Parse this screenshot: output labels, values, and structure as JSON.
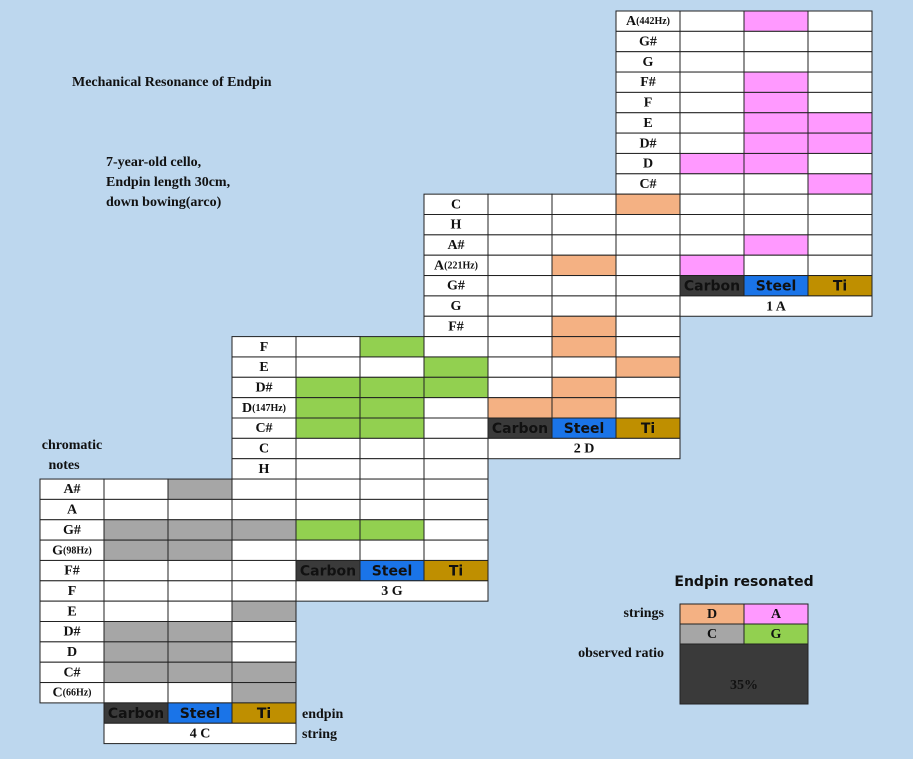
{
  "title": "Mechanical Resonance of Endpin",
  "subtitle": [
    "7-year-old cello,",
    "Endpin length 30cm,",
    "down bowing(arco)"
  ],
  "notes_label": [
    "chromatic",
    "notes"
  ],
  "string_label": [
    "endpin",
    "string"
  ],
  "legend_colors": {
    "Carbon": "#3a3a3a",
    "Steel": "#1a74e8",
    "Ti": "#bf8f00"
  },
  "tables": [
    {
      "string": "1 A",
      "color": "#ff99ff",
      "legend": [
        "Carbon",
        "Steel",
        "Ti"
      ],
      "rows": [
        {
          "note": "A",
          "freq": "(442Hz)",
          "resonated": [
            false,
            true,
            false
          ]
        },
        {
          "note": "G#",
          "resonated": [
            false,
            false,
            false
          ]
        },
        {
          "note": "G",
          "resonated": [
            false,
            false,
            false
          ]
        },
        {
          "note": "F#",
          "resonated": [
            false,
            true,
            false
          ]
        },
        {
          "note": "F",
          "resonated": [
            false,
            true,
            false
          ]
        },
        {
          "note": "E",
          "resonated": [
            false,
            true,
            true
          ]
        },
        {
          "note": "D#",
          "resonated": [
            false,
            true,
            true
          ]
        },
        {
          "note": "D",
          "resonated": [
            true,
            true,
            false
          ]
        },
        {
          "note": "C#",
          "resonated": [
            false,
            false,
            true
          ]
        },
        {
          "note": null,
          "resonated": [
            false,
            false,
            false
          ]
        },
        {
          "note": null,
          "resonated": [
            false,
            false,
            false
          ]
        },
        {
          "note": null,
          "resonated": [
            false,
            true,
            false
          ]
        },
        {
          "note": null,
          "resonated": [
            true,
            false,
            false
          ]
        }
      ]
    },
    {
      "string": "2 D",
      "color": "#f4b183",
      "legend": [
        "Carbon",
        "Steel",
        "Ti"
      ],
      "rows": [
        {
          "note": "C",
          "resonated": [
            false,
            false,
            true
          ]
        },
        {
          "note": "H",
          "resonated": [
            false,
            false,
            false
          ]
        },
        {
          "note": "A#",
          "resonated": [
            false,
            false,
            false
          ]
        },
        {
          "note": "A",
          "freq": "(221Hz)",
          "resonated": [
            false,
            true,
            false
          ]
        },
        {
          "note": "G#",
          "resonated": [
            false,
            false,
            false
          ]
        },
        {
          "note": "G",
          "resonated": [
            false,
            false,
            false
          ]
        },
        {
          "note": "F#",
          "resonated": [
            false,
            true,
            false
          ]
        },
        {
          "note": null,
          "resonated": [
            false,
            true,
            false
          ]
        },
        {
          "note": null,
          "resonated": [
            false,
            false,
            true
          ]
        },
        {
          "note": null,
          "resonated": [
            false,
            true,
            false
          ]
        },
        {
          "note": null,
          "resonated": [
            true,
            true,
            false
          ]
        }
      ]
    },
    {
      "string": "3 G",
      "color": "#92d050",
      "legend": [
        "Carbon",
        "Steel",
        "Ti"
      ],
      "rows": [
        {
          "note": "F",
          "resonated": [
            false,
            true,
            false
          ]
        },
        {
          "note": "E",
          "resonated": [
            false,
            false,
            true
          ]
        },
        {
          "note": "D#",
          "resonated": [
            true,
            true,
            true
          ]
        },
        {
          "note": "D",
          "freq": "(147Hz)",
          "resonated": [
            true,
            true,
            false
          ]
        },
        {
          "note": "C#",
          "resonated": [
            true,
            true,
            false
          ]
        },
        {
          "note": "C",
          "resonated": [
            false,
            false,
            false
          ]
        },
        {
          "note": "H",
          "resonated": [
            false,
            false,
            false
          ]
        },
        {
          "note": null,
          "resonated": [
            false,
            false,
            false
          ]
        },
        {
          "note": null,
          "resonated": [
            false,
            false,
            false
          ]
        },
        {
          "note": null,
          "resonated": [
            true,
            true,
            false
          ]
        },
        {
          "note": null,
          "resonated": [
            false,
            false,
            false
          ]
        }
      ]
    },
    {
      "string": "4 C",
      "color": "#a6a6a6",
      "legend": [
        "Carbon",
        "Steel",
        "Ti"
      ],
      "rows": [
        {
          "note": "A#",
          "resonated": [
            false,
            true,
            false
          ]
        },
        {
          "note": "A",
          "resonated": [
            false,
            false,
            false
          ]
        },
        {
          "note": "G#",
          "resonated": [
            true,
            true,
            true
          ]
        },
        {
          "note": "G",
          "freq": "(98Hz)",
          "resonated": [
            true,
            true,
            false
          ]
        },
        {
          "note": "F#",
          "resonated": [
            false,
            false,
            false
          ]
        },
        {
          "note": "F",
          "resonated": [
            false,
            false,
            false
          ]
        },
        {
          "note": "E",
          "resonated": [
            false,
            false,
            true
          ]
        },
        {
          "note": "D#",
          "resonated": [
            true,
            true,
            false
          ]
        },
        {
          "note": "D",
          "resonated": [
            true,
            true,
            false
          ]
        },
        {
          "note": "C#",
          "resonated": [
            true,
            true,
            true
          ]
        },
        {
          "note": "C",
          "freq": "(66Hz)",
          "resonated": [
            false,
            false,
            true
          ]
        }
      ]
    }
  ],
  "summary": {
    "title": "Endpin  resonated",
    "strings_label": "strings",
    "strings": [
      {
        "name": "D",
        "color": "#f4b183"
      },
      {
        "name": "A",
        "color": "#ff99ff"
      },
      {
        "name": "C",
        "color": "#a6a6a6"
      },
      {
        "name": "G",
        "color": "#92d050"
      }
    ],
    "ratio_label": "observed ratio",
    "ratio": "35%"
  }
}
